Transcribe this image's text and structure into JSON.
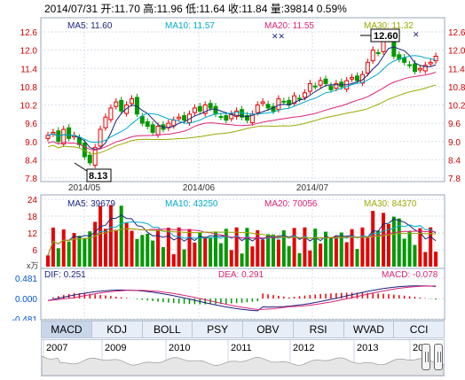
{
  "header": {
    "date": "2014/07/31",
    "open_label": "开:11.70",
    "high_label": "高:11.96",
    "low_label": "低:11.64",
    "close_label": "收:11.84",
    "volume_label": "量:39814",
    "change_label": "0.59%"
  },
  "price_panel": {
    "ma5_label": "MA5: 11.60",
    "ma10_label": "MA10: 11.57",
    "ma20_label": "MA20: 11.55",
    "ma30_label": "MA30: 11.32",
    "high_marker": "12.60",
    "low_marker": "8.13",
    "y_ticks": [
      "12.6",
      "12.0",
      "11.4",
      "10.8",
      "10.2",
      "9.6",
      "9.0",
      "8.4",
      "7.8"
    ],
    "x_ticks": [
      "2014/05",
      "2014/06",
      "2014/07"
    ]
  },
  "volume_panel": {
    "ma5_label": "MA5: 39679",
    "ma10_label": "MA10: 43250",
    "ma20_label": "MA20: 70056",
    "ma30_label": "MA30: 84370",
    "y_ticks": [
      "24",
      "18",
      "12",
      "6"
    ],
    "unit": "x万"
  },
  "macd_panel": {
    "dif_label": "DIF: 0.251",
    "dea_label": "DEA: 0.291",
    "macd_label": "MACD: -0.078",
    "y_ticks": [
      "0.481",
      "0.000",
      "-0.481"
    ]
  },
  "tabs": [
    "MACD",
    "KDJ",
    "BOLL",
    "PSY",
    "OBV",
    "RSI",
    "WVAD",
    "CCI"
  ],
  "navigator_years": [
    "2007",
    "2009",
    "2010",
    "2011",
    "2012",
    "2013",
    "20"
  ],
  "colors": {
    "up": "#e60000",
    "down": "#009900",
    "ma5": "#1a237e",
    "ma10": "#00aacc",
    "ma20": "#dd2277",
    "ma30": "#99aa00"
  },
  "chart_data": [
    {
      "type": "candlestick",
      "ylim": [
        7.8,
        12.6
      ],
      "x_ticks": [
        "2014/05",
        "2014/06",
        "2014/07"
      ],
      "series_ma": [
        "MA5",
        "MA10",
        "MA20",
        "MA30"
      ]
    },
    {
      "type": "bar",
      "ylim": [
        0,
        24
      ]
    },
    {
      "type": "bar",
      "ylim": [
        -0.481,
        0.481
      ]
    }
  ]
}
